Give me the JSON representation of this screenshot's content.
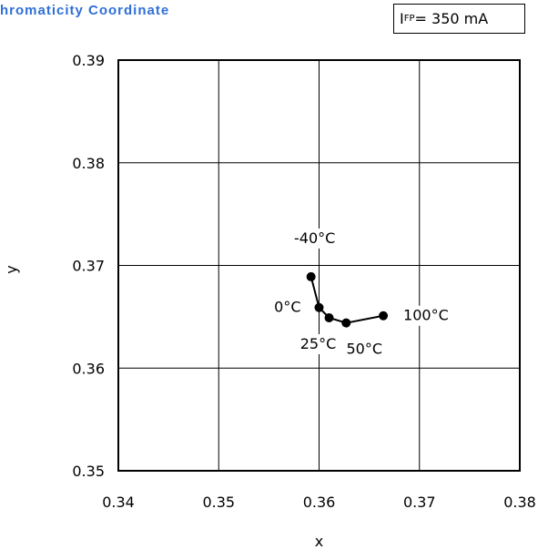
{
  "header": {
    "title": "hromaticity Coordinate",
    "condition": {
      "symbol": "I",
      "subscript": "FP",
      "value": "= 350 mA"
    }
  },
  "chart_data": {
    "type": "line",
    "title": "hromaticity Coordinate",
    "xlabel": "x",
    "ylabel": "y",
    "xlim": [
      0.34,
      0.38
    ],
    "ylim": [
      0.35,
      0.39
    ],
    "xticks": [
      "0.34",
      "0.35",
      "0.36",
      "0.37",
      "0.38"
    ],
    "yticks": [
      "0.35",
      "0.36",
      "0.37",
      "0.38",
      "0.39"
    ],
    "grid": true,
    "series": [
      {
        "points": [
          {
            "x": 0.3592,
            "y": 0.3689,
            "label": "-40°C"
          },
          {
            "x": 0.36,
            "y": 0.3659,
            "label": "0°C"
          },
          {
            "x": 0.361,
            "y": 0.3649,
            "label": "25°C"
          },
          {
            "x": 0.3627,
            "y": 0.3644,
            "label": "50°C"
          },
          {
            "x": 0.3664,
            "y": 0.3651,
            "label": "100°C"
          }
        ]
      }
    ],
    "colors": {
      "line": "#000000",
      "grid": "#000000",
      "title": "#2f6fd6"
    }
  }
}
